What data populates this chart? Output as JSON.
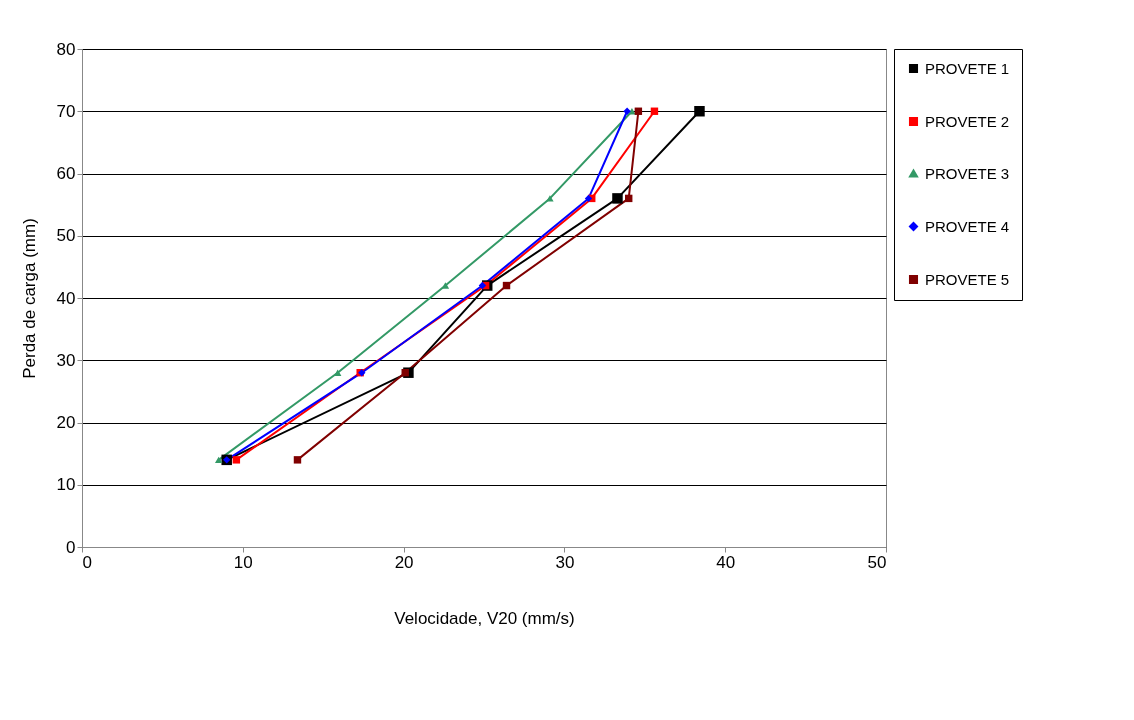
{
  "chart_data": {
    "type": "line",
    "xlabel": "Velocidade, V20 (mm/s)",
    "ylabel": "Perda de carga (mm)",
    "xlim": [
      0,
      50
    ],
    "xticks": [
      0,
      10,
      20,
      30,
      40,
      50
    ],
    "ylim": [
      0,
      80
    ],
    "yticks": [
      0,
      10,
      20,
      30,
      40,
      50,
      60,
      70,
      80
    ],
    "grid": "y",
    "legend": "right",
    "series": [
      {
        "name": "PROVETE 1",
        "color": "#000000",
        "marker": "square",
        "x": [
          9.0,
          20.3,
          25.2,
          33.3,
          38.4
        ],
        "values": [
          14,
          28,
          42,
          56,
          70
        ]
      },
      {
        "name": "PROVETE 2",
        "color": "#ff0000",
        "marker": "square",
        "x": [
          9.6,
          17.3,
          25.1,
          31.7,
          35.6
        ],
        "values": [
          14,
          28,
          42,
          56,
          70
        ]
      },
      {
        "name": "PROVETE 3",
        "color": "#339966",
        "marker": "triangle",
        "x": [
          8.5,
          15.9,
          22.6,
          29.1,
          34.2
        ],
        "values": [
          14,
          28,
          42,
          56,
          70
        ]
      },
      {
        "name": "PROVETE 4",
        "color": "#0000ff",
        "marker": "diamond",
        "x": [
          9.0,
          17.4,
          24.9,
          31.5,
          33.9
        ],
        "values": [
          14,
          28,
          42,
          56,
          70
        ]
      },
      {
        "name": "PROVETE 5",
        "color": "#800000",
        "marker": "square",
        "x": [
          13.4,
          20.1,
          26.4,
          34.0,
          34.6
        ],
        "values": [
          14,
          28,
          42,
          56,
          70
        ]
      }
    ]
  }
}
